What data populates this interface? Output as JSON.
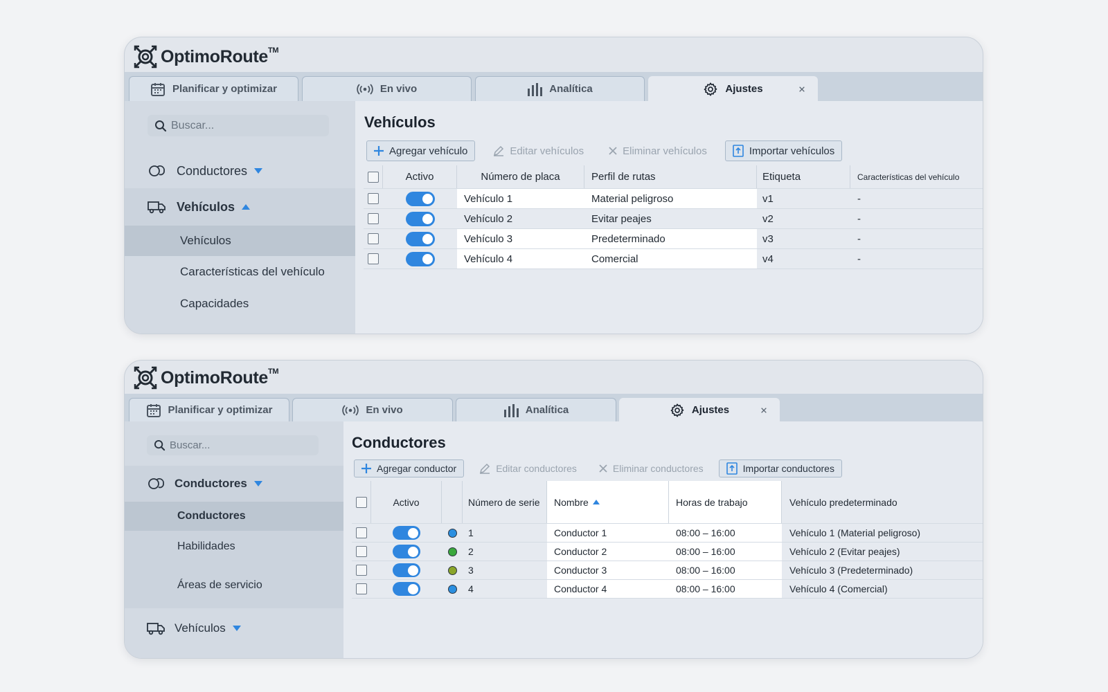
{
  "colors": {
    "accent": "#2f86df",
    "tab_bar": "#c9d3de",
    "sidebar": "#d3dae3",
    "content": "#e6eaf0",
    "highlight": "#ffffff"
  },
  "app": {
    "logo_name": "OptimoRoute",
    "trademark": "TM"
  },
  "tabs": [
    {
      "label": "Planificar y optimizar",
      "icon": "calendar-icon"
    },
    {
      "label": "En vivo",
      "icon": "broadcast-icon"
    },
    {
      "label": "Analítica",
      "icon": "bar-chart-icon"
    },
    {
      "label": "Ajustes",
      "icon": "gear-icon",
      "active": true,
      "close_glyph": "×"
    }
  ],
  "vehicles_view": {
    "search_placeholder": "Buscar...",
    "nav": {
      "drivers_label": "Conductores",
      "vehicles_label": "Vehículos",
      "subitems": [
        "Vehículos",
        "Características del vehículo",
        "Capacidades"
      ]
    },
    "title": "Vehículos",
    "toolbar": {
      "add": "Agregar vehículo",
      "edit": "Editar vehículos",
      "delete": "Eliminar vehículos",
      "import": "Importar vehículos"
    },
    "columns": [
      "Activo",
      "Número de placa",
      "Perfil de rutas",
      "Etiqueta",
      "Características del vehículo"
    ],
    "rows": [
      {
        "active": true,
        "plate": "Vehículo 1",
        "profile": "Material peligroso",
        "tag": "v1",
        "features": "-"
      },
      {
        "active": true,
        "plate": "Vehículo 2",
        "profile": "Evitar peajes",
        "tag": "v2",
        "features": "-"
      },
      {
        "active": true,
        "plate": "Vehículo 3",
        "profile": "Predeterminado",
        "tag": "v3",
        "features": "-"
      },
      {
        "active": true,
        "plate": "Vehículo 4",
        "profile": "Comercial",
        "tag": "v4",
        "features": "-"
      }
    ]
  },
  "drivers_view": {
    "search_placeholder": "Buscar...",
    "nav": {
      "drivers_label": "Conductores",
      "subitems": [
        "Conductores",
        "Habilidades",
        "Áreas de servicio"
      ],
      "vehicles_label": "Vehículos"
    },
    "title": "Conductores",
    "toolbar": {
      "add": "Agregar conductor",
      "edit": "Editar conductores",
      "delete": "Eliminar conductores",
      "import": "Importar conductores"
    },
    "columns": [
      "Activo",
      "Número de serie",
      "Nombre",
      "Horas de trabajo",
      "Vehículo predeterminado"
    ],
    "sort_indicator": "ascending",
    "rows": [
      {
        "active": true,
        "color": "#2b8fe0",
        "serial": "1",
        "name": "Conductor 1",
        "hours": "08:00 – 16:00",
        "vehicle": "Vehículo 1 (Material peligroso)"
      },
      {
        "active": true,
        "color": "#3aa83c",
        "serial": "2",
        "name": "Conductor 2",
        "hours": "08:00 – 16:00",
        "vehicle": "Vehículo 2 (Evitar peajes)"
      },
      {
        "active": true,
        "color": "#8aa52a",
        "serial": "3",
        "name": "Conductor 3",
        "hours": "08:00 – 16:00",
        "vehicle": "Vehículo 3 (Predeterminado)"
      },
      {
        "active": true,
        "color": "#2b8fe0",
        "serial": "4",
        "name": "Conductor 4",
        "hours": "08:00 – 16:00",
        "vehicle": "Vehículo 4 (Comercial)"
      }
    ]
  }
}
